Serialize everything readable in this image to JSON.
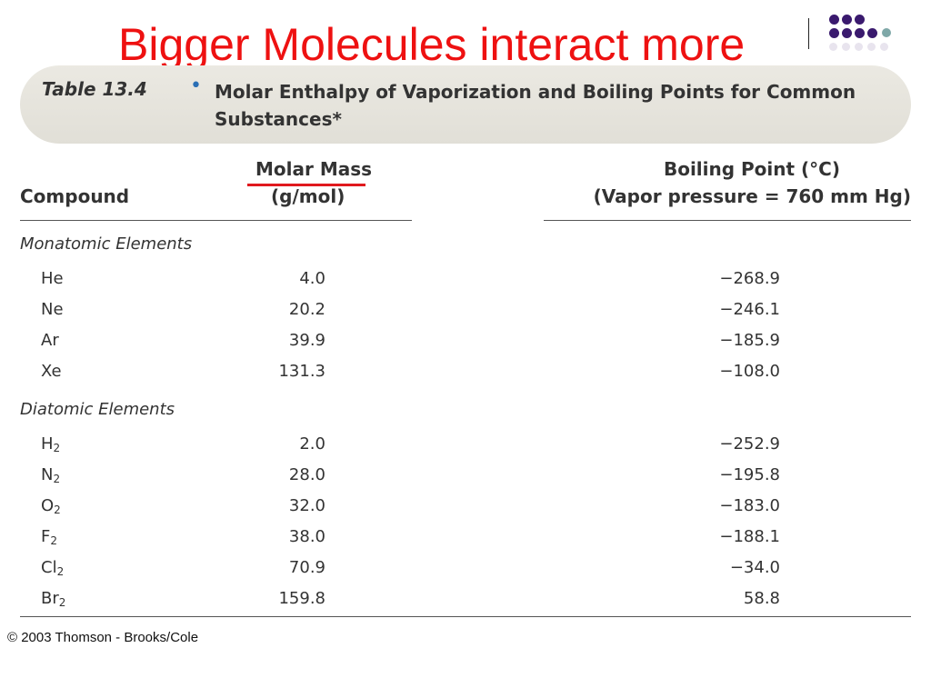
{
  "slide": {
    "title": "Bigger Molecules interact more",
    "title_color": "#ee1111",
    "accent_dark": "#3a1a6e",
    "accent_teal": "#7fa8a8"
  },
  "table": {
    "label": "Table 13.4",
    "bullet": "•",
    "bullet_color": "#2b6fb5",
    "caption": "Molar Enthalpy of Vaporization and Boiling Points for Common Substances*",
    "headers": {
      "compound": "Compound",
      "molar_mass_line1": "Molar Mass",
      "molar_mass_line2": "(g/mol)",
      "boiling_point_line1": "Boiling Point (°C)",
      "boiling_point_line2": "(Vapor pressure = 760 mm Hg)"
    },
    "groups": [
      {
        "label": "Monatomic Elements",
        "rows": [
          {
            "symbol": "He",
            "sub": "",
            "mass": "4.0",
            "bp": "−268.9"
          },
          {
            "symbol": "Ne",
            "sub": "",
            "mass": "20.2",
            "bp": "−246.1"
          },
          {
            "symbol": "Ar",
            "sub": "",
            "mass": "39.9",
            "bp": "−185.9"
          },
          {
            "symbol": "Xe",
            "sub": "",
            "mass": "131.3",
            "bp": "−108.0"
          }
        ]
      },
      {
        "label": "Diatomic Elements",
        "rows": [
          {
            "symbol": "H",
            "sub": "2",
            "mass": "2.0",
            "bp": "−252.9"
          },
          {
            "symbol": "N",
            "sub": "2",
            "mass": "28.0",
            "bp": "−195.8"
          },
          {
            "symbol": "O",
            "sub": "2",
            "mass": "32.0",
            "bp": "−183.0"
          },
          {
            "symbol": "F",
            "sub": "2",
            "mass": "38.0",
            "bp": "−188.1"
          },
          {
            "symbol": "Cl",
            "sub": "2",
            "mass": "70.9",
            "bp": "−34.0"
          },
          {
            "symbol": "Br",
            "sub": "2",
            "mass": "159.8",
            "bp": "58.8"
          }
        ]
      }
    ]
  },
  "footer": {
    "copyright": "© 2003 Thomson - Brooks/Cole"
  }
}
